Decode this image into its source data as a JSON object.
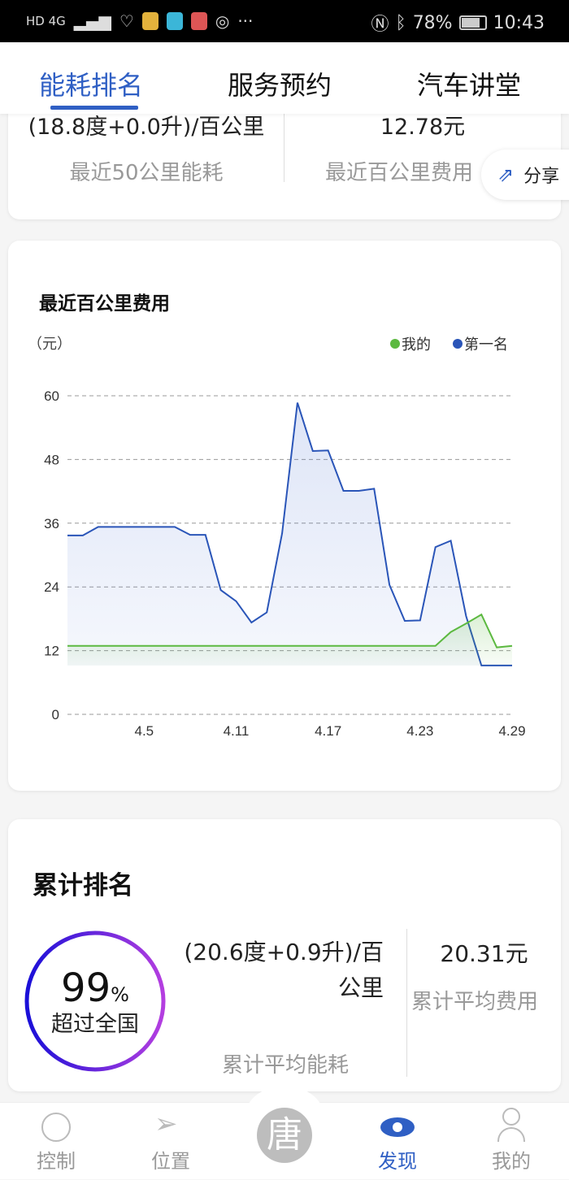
{
  "status_bar": {
    "left": "HD 4G",
    "battery": "78%",
    "time": "10:43"
  },
  "tabs": [
    {
      "label": "能耗排名",
      "active": true
    },
    {
      "label": "服务预约",
      "active": false
    },
    {
      "label": "汽车讲堂",
      "active": false
    }
  ],
  "recent": {
    "energy_value": "(18.8度+0.0升)/百公里",
    "energy_label": "最近50公里能耗",
    "cost_value": "12.78元",
    "cost_label": "最近百公里费用"
  },
  "share": {
    "label": "分享",
    "icon": "share-icon"
  },
  "chart_card": {
    "title": "最近百公里费用"
  },
  "chart_data": {
    "type": "area",
    "title": "最近百公里费用",
    "ylabel": "（元）",
    "xlabel": "",
    "ylim": [
      0,
      60
    ],
    "yticks": [
      "0",
      "12",
      "24",
      "36",
      "48",
      "60"
    ],
    "xtick_labels": [
      "4.5",
      "4.11",
      "4.17",
      "4.23",
      "4.29"
    ],
    "x": [
      "3.31",
      "4.1",
      "4.2",
      "4.3",
      "4.4",
      "4.5",
      "4.6",
      "4.7",
      "4.8",
      "4.9",
      "4.10",
      "4.11",
      "4.12",
      "4.13",
      "4.14",
      "4.15",
      "4.16",
      "4.17",
      "4.18",
      "4.19",
      "4.20",
      "4.21",
      "4.22",
      "4.23",
      "4.24",
      "4.25",
      "4.26",
      "4.27",
      "4.28",
      "4.29"
    ],
    "grid": true,
    "legend_position": "top-right",
    "series": [
      {
        "name": "我的",
        "color": "#5cb940",
        "values": [
          12.9,
          12.9,
          12.9,
          12.9,
          12.9,
          12.9,
          12.9,
          12.9,
          12.9,
          12.9,
          12.9,
          12.9,
          12.9,
          12.9,
          12.9,
          12.9,
          12.9,
          12.9,
          12.9,
          12.9,
          12.9,
          12.9,
          12.9,
          12.9,
          12.9,
          15.5,
          17.1,
          18.8,
          12.6,
          12.9
        ]
      },
      {
        "name": "第一名",
        "color": "#2a55b8",
        "values": [
          33.7,
          33.7,
          35.3,
          35.3,
          35.3,
          35.3,
          35.3,
          35.3,
          33.8,
          33.8,
          23.4,
          21.3,
          17.3,
          19.2,
          34.1,
          58.7,
          49.6,
          49.7,
          42.1,
          42.1,
          42.5,
          24.4,
          17.6,
          17.7,
          31.5,
          32.7,
          18.5,
          9.2,
          9.2,
          9.2
        ]
      }
    ]
  },
  "cumulative": {
    "title": "累计排名",
    "percent": "99",
    "percent_sign": "%",
    "percent_label": "超过全国",
    "energy_value": "(20.6度+0.9升)/百公里",
    "energy_label": "累计平均能耗",
    "cost_value": "20.31元",
    "cost_label": "累计平均费用"
  },
  "nav": [
    {
      "label": "控制",
      "icon": "control-icon"
    },
    {
      "label": "位置",
      "icon": "location-icon"
    },
    {
      "label": "唐",
      "icon": "center-logo"
    },
    {
      "label": "发现",
      "icon": "eye-icon",
      "active": true
    },
    {
      "label": "我的",
      "icon": "user-icon"
    }
  ]
}
